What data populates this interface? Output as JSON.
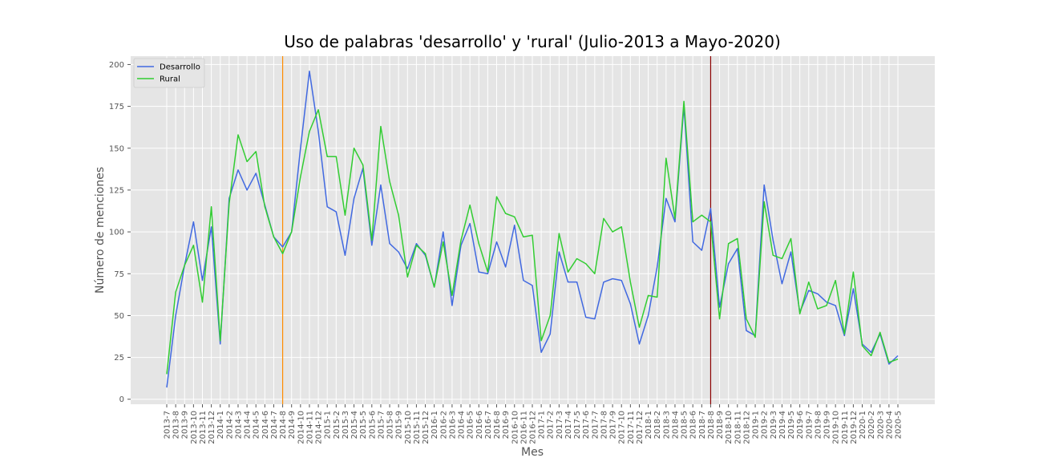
{
  "chart_data": {
    "type": "line",
    "title": "Uso de palabras 'desarrollo' y 'rural' (Julio-2013 a Mayo-2020)",
    "xlabel": "Mes",
    "ylabel": "Número de menciones",
    "ylim": [
      -3,
      205
    ],
    "yticks": [
      0,
      25,
      50,
      75,
      100,
      125,
      150,
      175,
      200
    ],
    "grid": true,
    "legend_position": "top-left",
    "x_categories": [
      "2013-7",
      "2013-8",
      "2013-9",
      "2013-10",
      "2013-11",
      "2013-12",
      "2014-1",
      "2014-2",
      "2014-3",
      "2014-4",
      "2014-5",
      "2014-6",
      "2014-7",
      "2014-8",
      "2014-9",
      "2014-10",
      "2014-11",
      "2014-12",
      "2015-1",
      "2015-2",
      "2015-3",
      "2015-4",
      "2015-5",
      "2015-6",
      "2015-7",
      "2015-8",
      "2015-9",
      "2015-10",
      "2015-11",
      "2015-12",
      "2016-1",
      "2016-2",
      "2016-3",
      "2016-4",
      "2016-5",
      "2016-6",
      "2016-7",
      "2016-8",
      "2016-9",
      "2016-10",
      "2016-11",
      "2016-12",
      "2017-1",
      "2017-2",
      "2017-3",
      "2017-4",
      "2017-5",
      "2017-6",
      "2017-7",
      "2017-8",
      "2017-9",
      "2017-10",
      "2017-11",
      "2017-12",
      "2018-1",
      "2018-2",
      "2018-3",
      "2018-4",
      "2018-5",
      "2018-6",
      "2018-7",
      "2018-8",
      "2018-9",
      "2018-10",
      "2018-11",
      "2018-12",
      "2019-1",
      "2019-2",
      "2019-3",
      "2019-4",
      "2019-5",
      "2019-6",
      "2019-7",
      "2019-8",
      "2019-9",
      "2019-10",
      "2019-11",
      "2019-12",
      "2020-1",
      "2020-2",
      "2020-3",
      "2020-4",
      "2020-5"
    ],
    "series": [
      {
        "name": "Desarrollo",
        "color": "#4169e1",
        "values": [
          7,
          50,
          80,
          106,
          71,
          103,
          33,
          120,
          137,
          125,
          135,
          116,
          97,
          91,
          100,
          150,
          196,
          160,
          115,
          112,
          86,
          120,
          138,
          92,
          128,
          93,
          88,
          78,
          93,
          86,
          67,
          100,
          56,
          92,
          105,
          76,
          75,
          94,
          79,
          104,
          71,
          68,
          28,
          39,
          88,
          70,
          70,
          49,
          48,
          70,
          72,
          71,
          57,
          33,
          50,
          79,
          120,
          106,
          175,
          94,
          89,
          114,
          55,
          81,
          90,
          41,
          38,
          128,
          95,
          69,
          88,
          52,
          65,
          63,
          58,
          56,
          38,
          66,
          33,
          28,
          39,
          21,
          26
        ]
      },
      {
        "name": "Rural",
        "color": "#32cd32",
        "values": [
          15,
          64,
          80,
          92,
          58,
          115,
          35,
          117,
          158,
          142,
          148,
          115,
          97,
          87,
          100,
          133,
          160,
          173,
          145,
          145,
          110,
          150,
          140,
          95,
          163,
          130,
          110,
          73,
          92,
          87,
          67,
          94,
          62,
          95,
          116,
          93,
          76,
          121,
          111,
          109,
          97,
          98,
          35,
          50,
          99,
          76,
          84,
          81,
          75,
          108,
          100,
          103,
          70,
          43,
          62,
          61,
          144,
          108,
          178,
          106,
          110,
          106,
          48,
          93,
          96,
          48,
          37,
          118,
          86,
          84,
          96,
          51,
          70,
          54,
          56,
          71,
          39,
          76,
          32,
          26,
          40,
          22,
          24
        ]
      }
    ],
    "reference_lines": [
      {
        "category": "2014-8",
        "color": "#ff8c00"
      },
      {
        "category": "2018-8",
        "color": "#8b0000"
      }
    ]
  }
}
